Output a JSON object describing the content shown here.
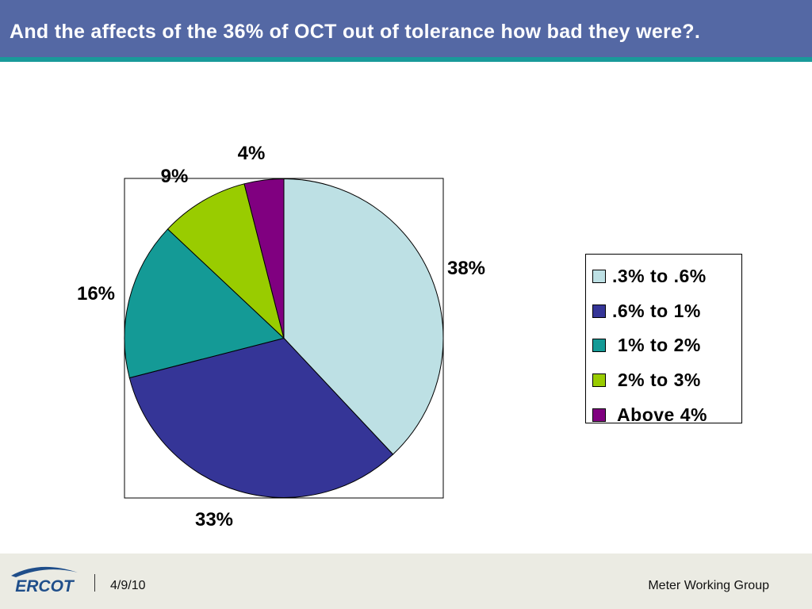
{
  "slide": {
    "title": "And the affects of the 36% of OCT out of tolerance how bad they were?."
  },
  "chart_data": {
    "type": "pie",
    "title": "",
    "categories": [
      ".3% to .6%",
      ".6% to 1%",
      "1% to 2%",
      "2% to 3%",
      "Above 4%"
    ],
    "values": [
      38,
      33,
      16,
      9,
      4
    ],
    "data_labels": [
      "38%",
      "33%",
      "16%",
      "9%",
      "4%"
    ],
    "colors": [
      "#bde0e4",
      "#353597",
      "#149a96",
      "#99cc00",
      "#800080"
    ],
    "legend_placement": "right",
    "start_angle": "12 o'clock",
    "direction": "clockwise"
  },
  "legend": {
    "items": [
      {
        "label": ".3% to .6%",
        "color": "#bde0e4"
      },
      {
        "label": ".6% to 1%",
        "color": "#353597"
      },
      {
        "label": " 1% to 2%",
        "color": "#149a96"
      },
      {
        "label": " 2% to 3%",
        "color": "#99cc00"
      },
      {
        "label": " Above 4%",
        "color": "#800080"
      }
    ]
  },
  "footer": {
    "logo_text": "ERCOT",
    "date": "4/9/10",
    "group": "Meter Working Group"
  }
}
